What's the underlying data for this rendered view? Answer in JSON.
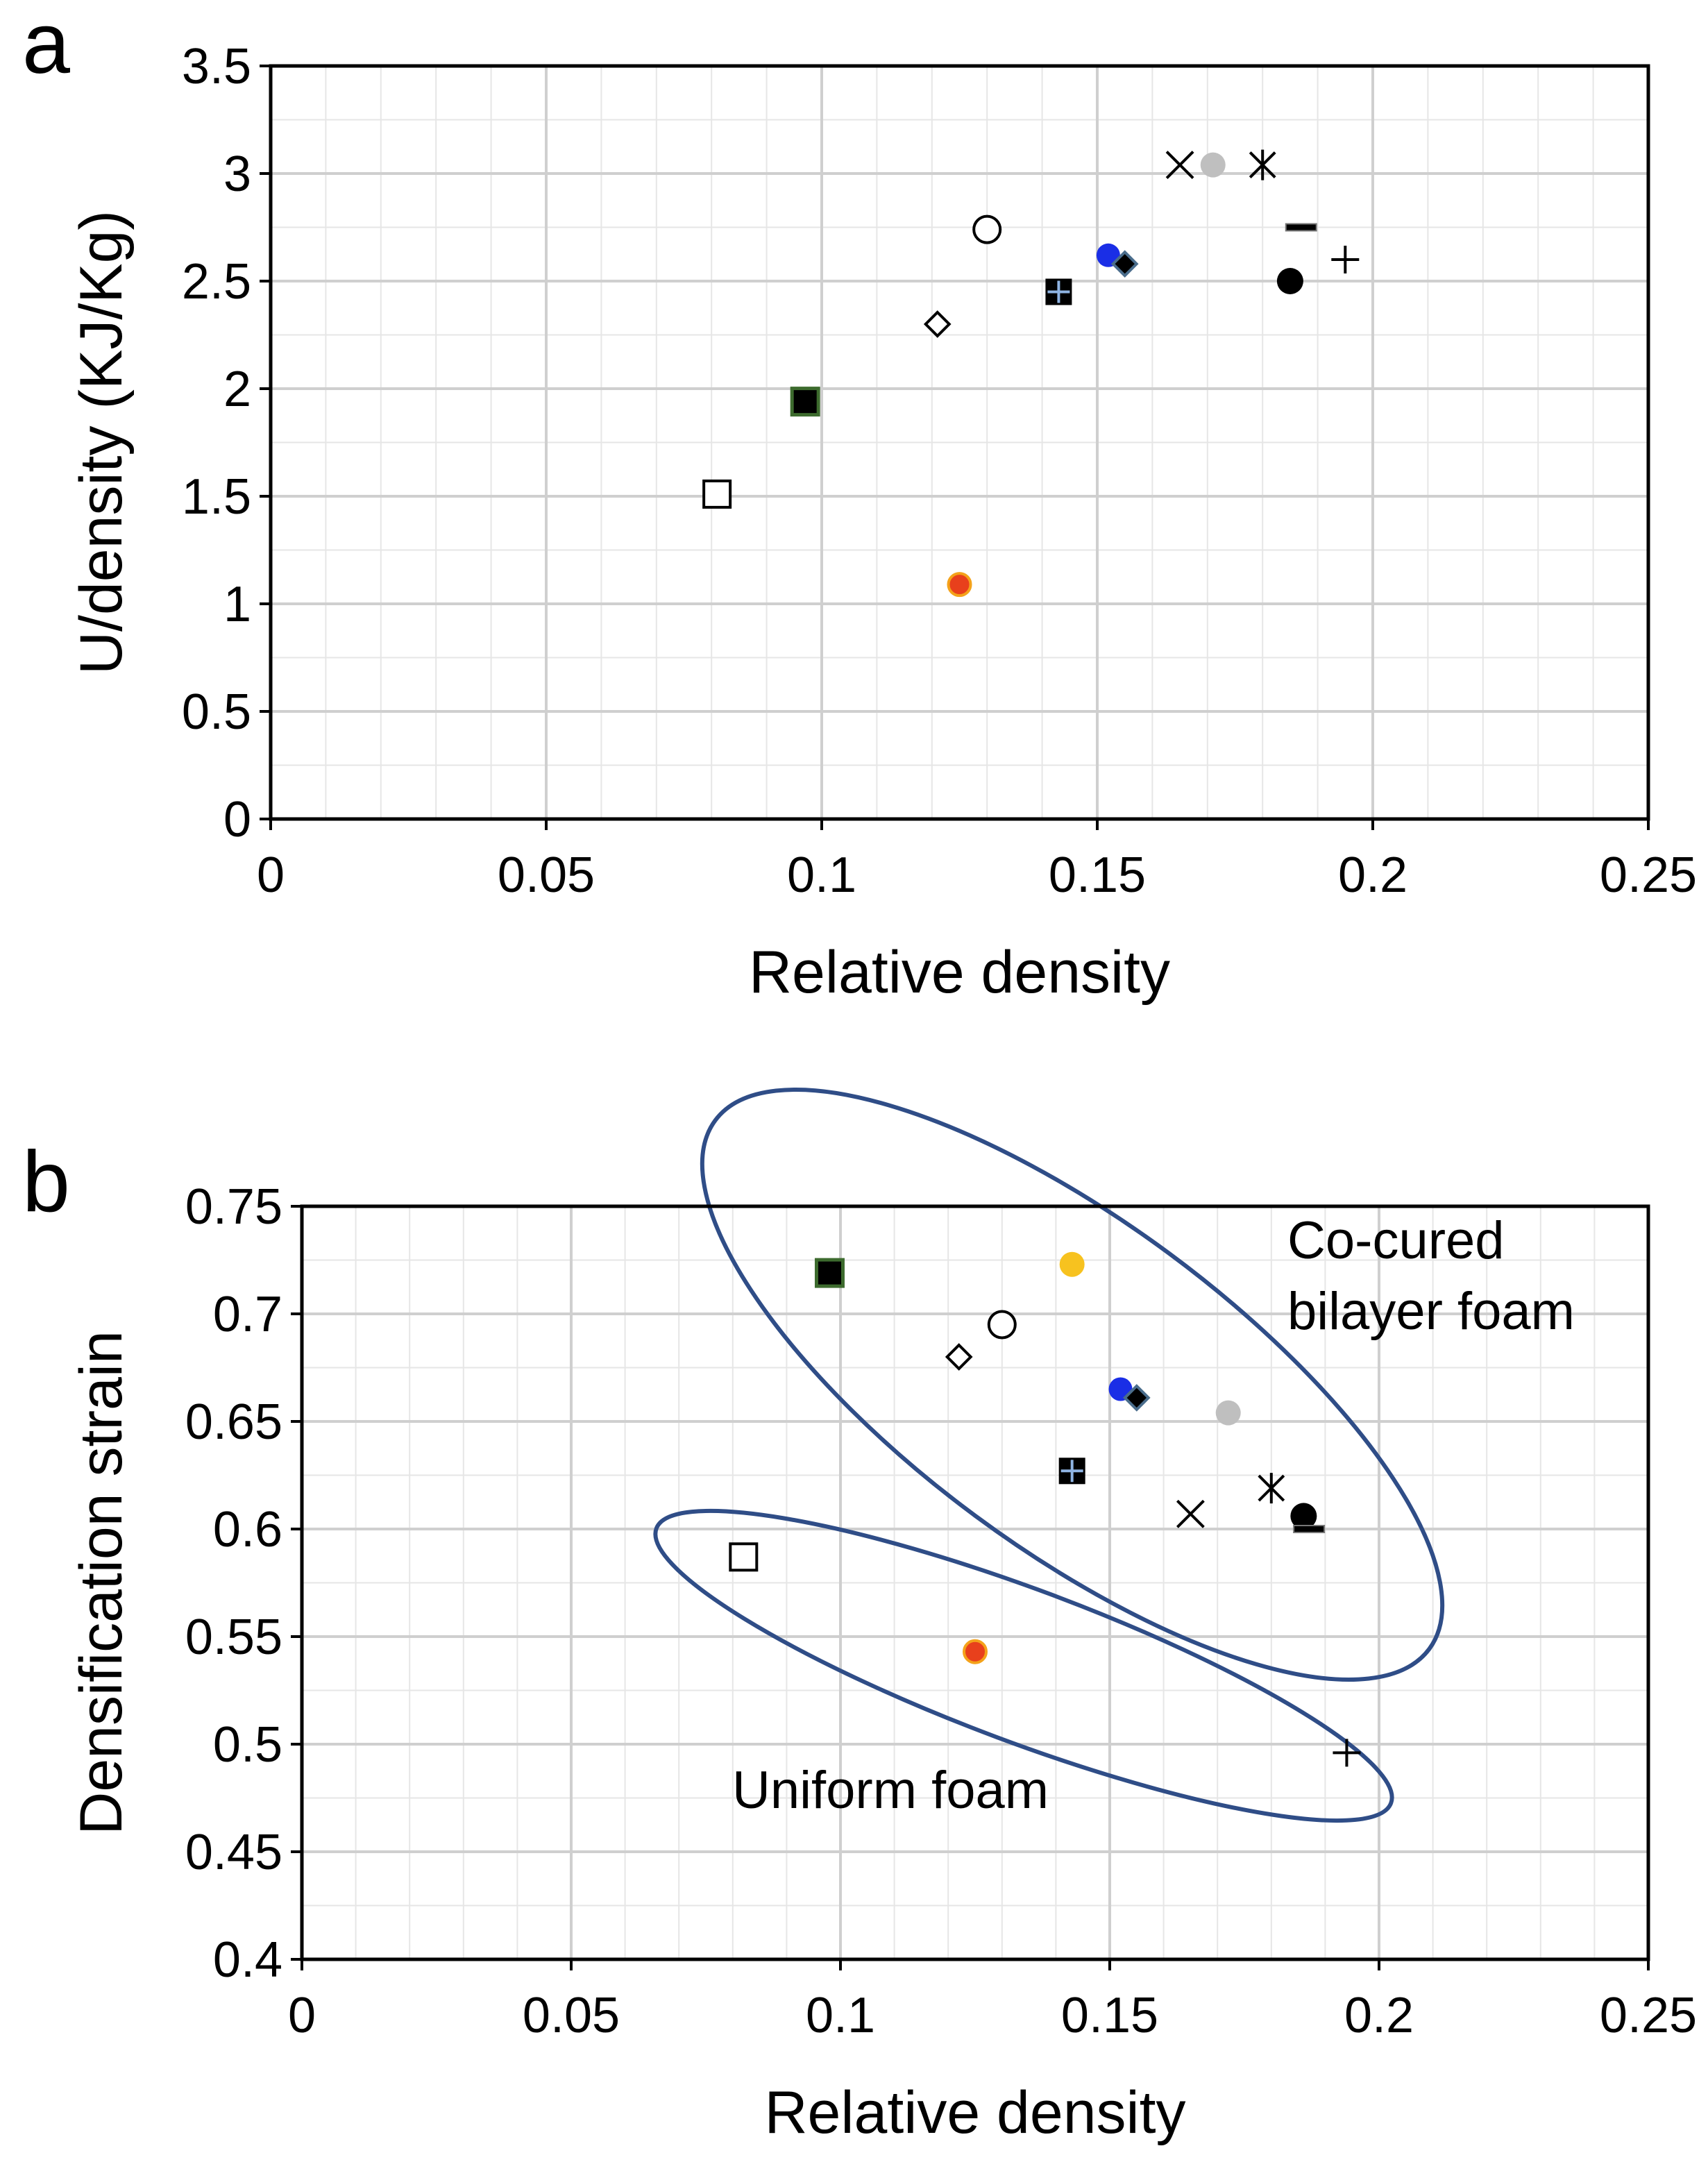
{
  "chart_data": [
    {
      "panel": "a",
      "type": "scatter",
      "xlabel": "Relative density",
      "ylabel": "U/density (KJ/Kg)",
      "xlim": [
        0,
        0.25
      ],
      "ylim": [
        0,
        3.5
      ],
      "xticks": [
        "0",
        "0.05",
        "0.1",
        "0.15",
        "0.2",
        "0.25"
      ],
      "yticks": [
        "0",
        "0.5",
        "1",
        "1.5",
        "2",
        "2.5",
        "3",
        "3.5"
      ],
      "grid": true,
      "points": [
        {
          "x": 0.081,
          "y": 1.51,
          "marker": "open-square"
        },
        {
          "x": 0.097,
          "y": 1.94,
          "marker": "filled-square-green-edge"
        },
        {
          "x": 0.121,
          "y": 2.3,
          "marker": "open-diamond"
        },
        {
          "x": 0.125,
          "y": 1.09,
          "marker": "red-circle"
        },
        {
          "x": 0.13,
          "y": 2.74,
          "marker": "open-circle"
        },
        {
          "x": 0.143,
          "y": 2.45,
          "marker": "square-plus"
        },
        {
          "x": 0.152,
          "y": 2.62,
          "marker": "blue-circle"
        },
        {
          "x": 0.155,
          "y": 2.58,
          "marker": "black-diamond"
        },
        {
          "x": 0.165,
          "y": 3.04,
          "marker": "x"
        },
        {
          "x": 0.171,
          "y": 3.04,
          "marker": "gray-circle"
        },
        {
          "x": 0.18,
          "y": 3.04,
          "marker": "asterisk"
        },
        {
          "x": 0.187,
          "y": 2.75,
          "marker": "dash"
        },
        {
          "x": 0.185,
          "y": 2.5,
          "marker": "black-circle"
        },
        {
          "x": 0.195,
          "y": 2.6,
          "marker": "plus"
        }
      ]
    },
    {
      "panel": "b",
      "type": "scatter",
      "xlabel": "Relative density",
      "ylabel": "Densification strain",
      "xlim": [
        0,
        0.25
      ],
      "ylim": [
        0.4,
        0.75
      ],
      "xticks": [
        "0",
        "0.05",
        "0.1",
        "0.15",
        "0.2",
        "0.25"
      ],
      "yticks": [
        "0.4",
        "0.45",
        "0.5",
        "0.55",
        "0.6",
        "0.65",
        "0.7",
        "0.75"
      ],
      "grid": true,
      "annotations": [
        "Co-cured",
        "bilayer foam",
        "Uniform foam"
      ],
      "points": [
        {
          "x": 0.082,
          "y": 0.587,
          "marker": "open-square"
        },
        {
          "x": 0.098,
          "y": 0.719,
          "marker": "filled-square-green-edge"
        },
        {
          "x": 0.122,
          "y": 0.68,
          "marker": "open-diamond"
        },
        {
          "x": 0.125,
          "y": 0.543,
          "marker": "red-circle"
        },
        {
          "x": 0.13,
          "y": 0.695,
          "marker": "open-circle"
        },
        {
          "x": 0.143,
          "y": 0.723,
          "marker": "yellow-circle"
        },
        {
          "x": 0.143,
          "y": 0.627,
          "marker": "square-plus"
        },
        {
          "x": 0.152,
          "y": 0.665,
          "marker": "blue-circle"
        },
        {
          "x": 0.155,
          "y": 0.661,
          "marker": "black-diamond"
        },
        {
          "x": 0.165,
          "y": 0.607,
          "marker": "x"
        },
        {
          "x": 0.172,
          "y": 0.654,
          "marker": "gray-circle"
        },
        {
          "x": 0.18,
          "y": 0.619,
          "marker": "asterisk"
        },
        {
          "x": 0.186,
          "y": 0.606,
          "marker": "black-circle"
        },
        {
          "x": 0.187,
          "y": 0.6,
          "marker": "dash"
        },
        {
          "x": 0.194,
          "y": 0.496,
          "marker": "plus"
        }
      ]
    }
  ],
  "panel_labels": {
    "a": "a",
    "b": "b"
  },
  "colors": {
    "red_fill": "#e8401c",
    "red_edge": "#f4a21a",
    "blue": "#1a2ee6",
    "gray": "#bfbfbf",
    "yellow": "#f7c21f",
    "green_edge": "#3d6b2e",
    "square_plus_line": "#8fb4e3",
    "ellipse": "#2f4d87"
  }
}
